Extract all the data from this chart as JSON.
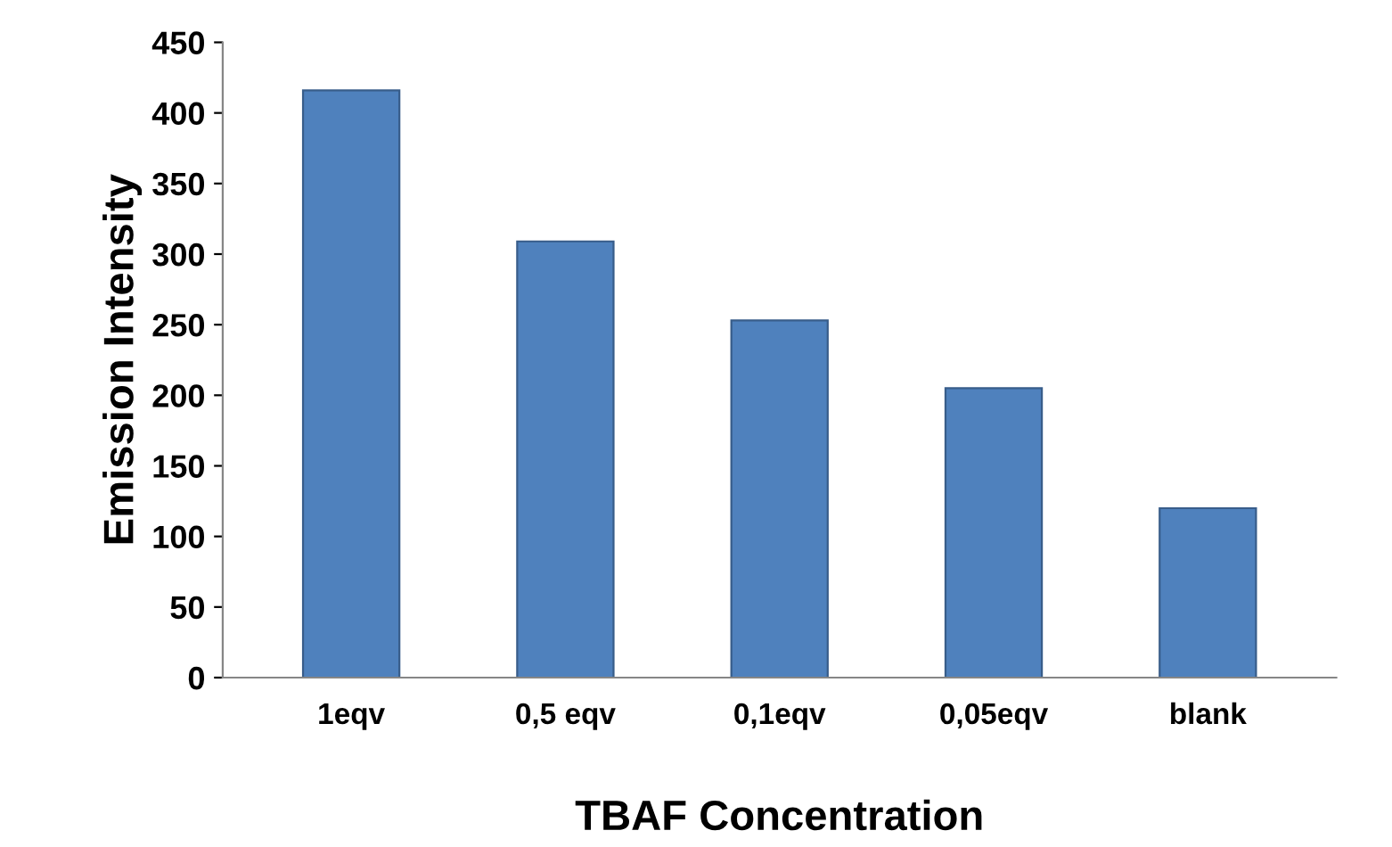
{
  "chart_data": {
    "type": "bar",
    "xlabel": "TBAF Concentration",
    "ylabel": "Emission Intensity",
    "categories": [
      "1eqv",
      "0,5 eqv",
      "0,1eqv",
      "0,05eqv",
      "blank"
    ],
    "values": [
      416,
      309,
      253,
      205,
      120
    ],
    "color": "#4f81bd",
    "ylim": [
      0,
      450
    ],
    "yticks": [
      0,
      50,
      100,
      150,
      200,
      250,
      300,
      350,
      400,
      450
    ],
    "grid": false
  }
}
